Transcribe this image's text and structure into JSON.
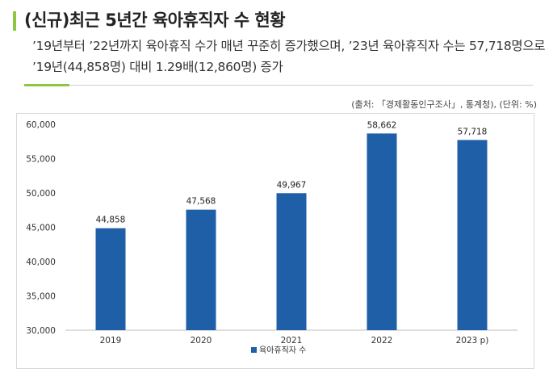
{
  "header": {
    "title": "(신규)최근 5년간 육아휴직자 수 현황",
    "summary": "’19년부터 ’22년까지 육아휴직 수가 매년 꾸준히 증가했으며, ’23년 육아휴직자 수는 57,718명으로 ’19년(44,858명) 대비 1.29배(12,860명) 증가",
    "source": "(출처: 「경제활동인구조사」, 통계청), (단위: %)"
  },
  "colors": {
    "bar": "#1f5fa8",
    "accent": "#8dc63f"
  },
  "chart_data": {
    "type": "bar",
    "categories": [
      "2019",
      "2020",
      "2021",
      "2022",
      "2023 p)"
    ],
    "series": [
      {
        "name": "육아휴직자 수",
        "values": [
          44858,
          47568,
          49967,
          58662,
          57718
        ]
      }
    ],
    "data_labels": [
      "44,858",
      "47,568",
      "49,967",
      "58,662",
      "57,718"
    ],
    "yticks": [
      "30,000",
      "35,000",
      "40,000",
      "45,000",
      "50,000",
      "55,000",
      "60,000"
    ],
    "ylim": [
      30000,
      60000
    ],
    "grid": false,
    "legend": "bottom"
  }
}
